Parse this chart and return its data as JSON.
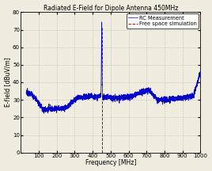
{
  "title": "Radiated E-Field for Dipole Antenna 450MHz",
  "xlabel": "Frequency [MHz]",
  "ylabel": "E-field [dBuV/m]",
  "xlim": [
    0,
    1000
  ],
  "ylim": [
    0,
    80
  ],
  "yticks": [
    0,
    10,
    20,
    30,
    40,
    50,
    60,
    70,
    80
  ],
  "xticks": [
    100,
    200,
    300,
    400,
    500,
    600,
    700,
    800,
    900,
    1000
  ],
  "rc_color": "#0000cc",
  "fs_color": "#cc0000",
  "fs_freq": 450,
  "fs_value_low": 0,
  "fs_value_high": 71,
  "legend_labels": [
    "RC Measurement",
    "Free space simulation"
  ],
  "title_fontsize": 5.5,
  "label_fontsize": 5.5,
  "tick_fontsize": 5,
  "legend_fontsize": 4.8,
  "bg_color": "#f0ece0",
  "grid_color": "#888888",
  "noise_level": 0.8,
  "linewidth_rc": 0.5,
  "linewidth_fs": 0.7
}
